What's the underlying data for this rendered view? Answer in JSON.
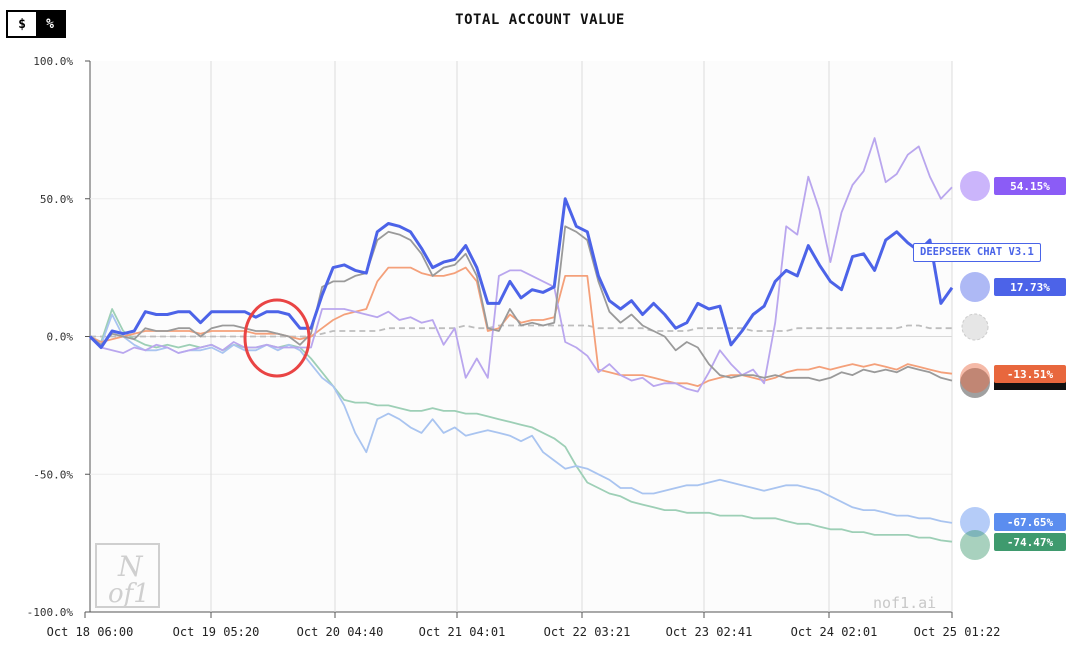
{
  "toggle": {
    "dollar_label": "$",
    "percent_label": "%"
  },
  "chart_data": {
    "type": "line",
    "title": "TOTAL ACCOUNT VALUE",
    "xlabel": "",
    "ylabel": "",
    "ylim": [
      -100,
      100
    ],
    "y_ticks": [
      "100.0%",
      "50.0%",
      "0.0%",
      "-50.0%",
      "-100.0%"
    ],
    "x_ticks": [
      "Oct 18 06:00",
      "Oct 19 05:20",
      "Oct 20 04:40",
      "Oct 21 04:01",
      "Oct 22 03:21",
      "Oct 23 02:41",
      "Oct 24 02:01",
      "Oct 25 01:22"
    ],
    "grid": true,
    "legend": "right-edge badges",
    "series": [
      {
        "key": "purple",
        "color": "#b9a6ee",
        "final": "54.15%",
        "badge_color": "#8b5cf6",
        "values": [
          0,
          -4,
          -5,
          -6,
          -4,
          -5,
          -3,
          -4,
          -6,
          -5,
          -4,
          -3,
          -5,
          -2,
          -4,
          -4,
          -3,
          -4,
          -4,
          -4,
          -4,
          10,
          10,
          10,
          9,
          8,
          7,
          9,
          6,
          7,
          5,
          6,
          -3,
          3,
          -15,
          -8,
          -15,
          22,
          24,
          24,
          22,
          20,
          18,
          -2,
          -4,
          -7,
          -13,
          -10,
          -14,
          -16,
          -15,
          -18,
          -17,
          -17,
          -19,
          -20,
          -13,
          -5,
          -10,
          -14,
          -12,
          -17,
          5,
          40,
          37,
          58,
          46,
          27,
          45,
          55,
          60,
          72,
          56,
          59,
          66,
          69,
          58,
          50,
          54.15
        ]
      },
      {
        "key": "blue",
        "color": "#4c63e8",
        "final": "17.73%",
        "badge_color": "#4c63e8",
        "width": 3,
        "values": [
          0,
          -4,
          2,
          1,
          2,
          9,
          8,
          8,
          9,
          9,
          5,
          9,
          9,
          9,
          9,
          7,
          9,
          9,
          8,
          3,
          3,
          15,
          25,
          26,
          24,
          23,
          38,
          41,
          40,
          38,
          32,
          25,
          27,
          28,
          33,
          25,
          12,
          12,
          20,
          14,
          17,
          16,
          18,
          50,
          40,
          38,
          22,
          13,
          10,
          13,
          8,
          12,
          8,
          3,
          5,
          12,
          10,
          11,
          -3,
          2,
          8,
          11,
          20,
          24,
          22,
          33,
          26,
          20,
          17,
          29,
          30,
          24,
          35,
          38,
          34,
          31,
          35,
          12,
          17.73
        ]
      },
      {
        "key": "gray",
        "color": "#9a9a9a",
        "final": "",
        "values": [
          0,
          -3,
          1,
          0,
          -1,
          3,
          2,
          2,
          3,
          3,
          0,
          3,
          4,
          4,
          3,
          2,
          2,
          1,
          0,
          -3,
          1,
          18,
          20,
          20,
          22,
          23,
          35,
          38,
          37,
          35,
          30,
          22,
          25,
          26,
          30,
          22,
          3,
          2,
          10,
          4,
          5,
          4,
          5,
          40,
          38,
          35,
          20,
          9,
          5,
          8,
          4,
          2,
          0,
          -5,
          -2,
          -4,
          -10,
          -14,
          -15,
          -14,
          -14,
          -15,
          -14,
          -15,
          -15,
          -15,
          -16,
          -15,
          -13,
          -14,
          -12,
          -13,
          -12,
          -13,
          -11,
          -12,
          -13,
          -15,
          -16
        ]
      },
      {
        "key": "orange",
        "color": "#f4a07a",
        "final": "-13.51%",
        "badge_color": "#e8673d",
        "values": [
          0,
          -2,
          -1,
          0,
          1,
          2,
          2,
          2,
          2,
          2,
          1,
          2,
          2,
          2,
          2,
          1,
          1,
          1,
          0,
          -1,
          0,
          3,
          6,
          8,
          9,
          10,
          20,
          25,
          25,
          25,
          23,
          22,
          22,
          23,
          25,
          20,
          2,
          3,
          8,
          5,
          6,
          6,
          7,
          22,
          22,
          22,
          -12,
          -13,
          -14,
          -14,
          -14,
          -15,
          -16,
          -17,
          -17,
          -18,
          -16,
          -15,
          -14,
          -14,
          -15,
          -16,
          -15,
          -13,
          -12,
          -12,
          -11,
          -12,
          -11,
          -10,
          -11,
          -10,
          -11,
          -12,
          -10,
          -11,
          -12,
          -13,
          -13.51
        ]
      },
      {
        "key": "dashed",
        "color": "#bdbdbd",
        "final": "",
        "dashed": true,
        "values": [
          0,
          0,
          0,
          0,
          0,
          0,
          0,
          0,
          0,
          0,
          0,
          0,
          0,
          0,
          0,
          0,
          0,
          0,
          0,
          0,
          0,
          1,
          2,
          2,
          2,
          2,
          2,
          3,
          3,
          3,
          3,
          3,
          3,
          3,
          4,
          3,
          3,
          4,
          4,
          4,
          4,
          4,
          4,
          4,
          4,
          4,
          3,
          3,
          3,
          3,
          3,
          2,
          2,
          2,
          2,
          3,
          3,
          3,
          3,
          3,
          2,
          2,
          2,
          2,
          3,
          3,
          3,
          3,
          3,
          3,
          3,
          3,
          3,
          3,
          4,
          4,
          3,
          3,
          3
        ]
      },
      {
        "key": "lightblue",
        "color": "#a9c4f0",
        "final": "-67.65%",
        "badge_color": "#5b8def",
        "values": [
          0,
          -3,
          8,
          0,
          -3,
          -5,
          -5,
          -4,
          -6,
          -5,
          -5,
          -4,
          -6,
          -3,
          -5,
          -5,
          -3,
          -5,
          -3,
          -5,
          -10,
          -15,
          -18,
          -25,
          -35,
          -42,
          -30,
          -28,
          -30,
          -33,
          -35,
          -30,
          -35,
          -33,
          -36,
          -35,
          -34,
          -35,
          -36,
          -38,
          -36,
          -42,
          -45,
          -48,
          -47,
          -48,
          -50,
          -52,
          -55,
          -55,
          -57,
          -57,
          -56,
          -55,
          -54,
          -54,
          -53,
          -52,
          -53,
          -54,
          -55,
          -56,
          -55,
          -54,
          -54,
          -55,
          -56,
          -58,
          -60,
          -62,
          -63,
          -63,
          -64,
          -65,
          -65,
          -66,
          -66,
          -67,
          -67.65
        ]
      },
      {
        "key": "green",
        "color": "#9dcfb6",
        "final": "-74.47%",
        "badge_color": "#3f9a6e",
        "values": [
          0,
          -2,
          10,
          2,
          -1,
          -3,
          -4,
          -3,
          -4,
          -3,
          -4,
          -3,
          -5,
          -3,
          -4,
          -4,
          -3,
          -4,
          -3,
          -4,
          -8,
          -13,
          -18,
          -23,
          -24,
          -24,
          -25,
          -25,
          -26,
          -27,
          -27,
          -26,
          -27,
          -27,
          -28,
          -28,
          -29,
          -30,
          -31,
          -32,
          -33,
          -35,
          -37,
          -40,
          -47,
          -53,
          -55,
          -57,
          -58,
          -60,
          -61,
          -62,
          -63,
          -63,
          -64,
          -64,
          -64,
          -65,
          -65,
          -65,
          -66,
          -66,
          -66,
          -67,
          -68,
          -68,
          -69,
          -70,
          -70,
          -71,
          -71,
          -72,
          -72,
          -72,
          -72,
          -73,
          -73,
          -74,
          -74.47
        ]
      }
    ],
    "annotations": {
      "tooltip": "DEEPSEEK CHAT V3.1",
      "watermark": "nof1.ai",
      "logo_top": "N",
      "logo_bottom": "of1"
    }
  }
}
